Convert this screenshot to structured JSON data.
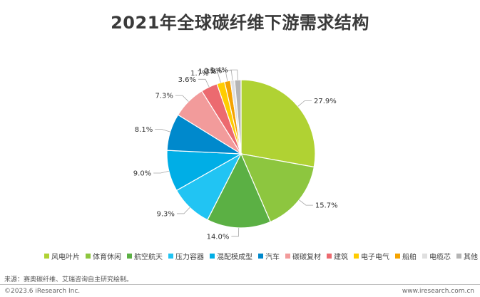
{
  "header": {
    "title": "2021年全球碳纤维下游需求结构"
  },
  "chart_data": {
    "type": "pie",
    "title": "2021年全球碳纤维下游需求结构",
    "legend_position": "bottom",
    "slices": [
      {
        "label": "风电叶片",
        "value": 27.9,
        "value_label": "27.9%",
        "color": "#b0d233"
      },
      {
        "label": "体育休闲",
        "value": 15.7,
        "value_label": "15.7%",
        "color": "#8dc63f"
      },
      {
        "label": "航空航天",
        "value": 14.0,
        "value_label": "14.0%",
        "color": "#5bb044"
      },
      {
        "label": "压力容器",
        "value": 9.3,
        "value_label": "9.3%",
        "color": "#21c4f3"
      },
      {
        "label": "混配模成型",
        "value": 9.0,
        "value_label": "9.0%",
        "color": "#00aee6"
      },
      {
        "label": "汽车",
        "value": 8.1,
        "value_label": "8.1%",
        "color": "#0089cc"
      },
      {
        "label": "碳碳复材",
        "value": 7.3,
        "value_label": "7.3%",
        "color": "#f29b9b"
      },
      {
        "label": "建筑",
        "value": 3.6,
        "value_label": "3.6%",
        "color": "#ec6a6f"
      },
      {
        "label": "电子电气",
        "value": 1.7,
        "value_label": "1.7%",
        "color": "#ffcc00"
      },
      {
        "label": "船舶",
        "value": 1.3,
        "value_label": "1.3%",
        "color": "#f5a300"
      },
      {
        "label": "电缆芯",
        "value": 0.9,
        "value_label": "0.9%",
        "color": "#dfdfdf"
      },
      {
        "label": "其他",
        "value": 1.4,
        "value_label": "1.4%",
        "color": "#b5b5b5"
      }
    ]
  },
  "footer": {
    "source": "来源：赛奥碳纤维、艾瑞咨询自主研究绘制。",
    "copyright": "©2023.6 iResearch Inc.",
    "website": "www.iresearch.com.cn"
  }
}
